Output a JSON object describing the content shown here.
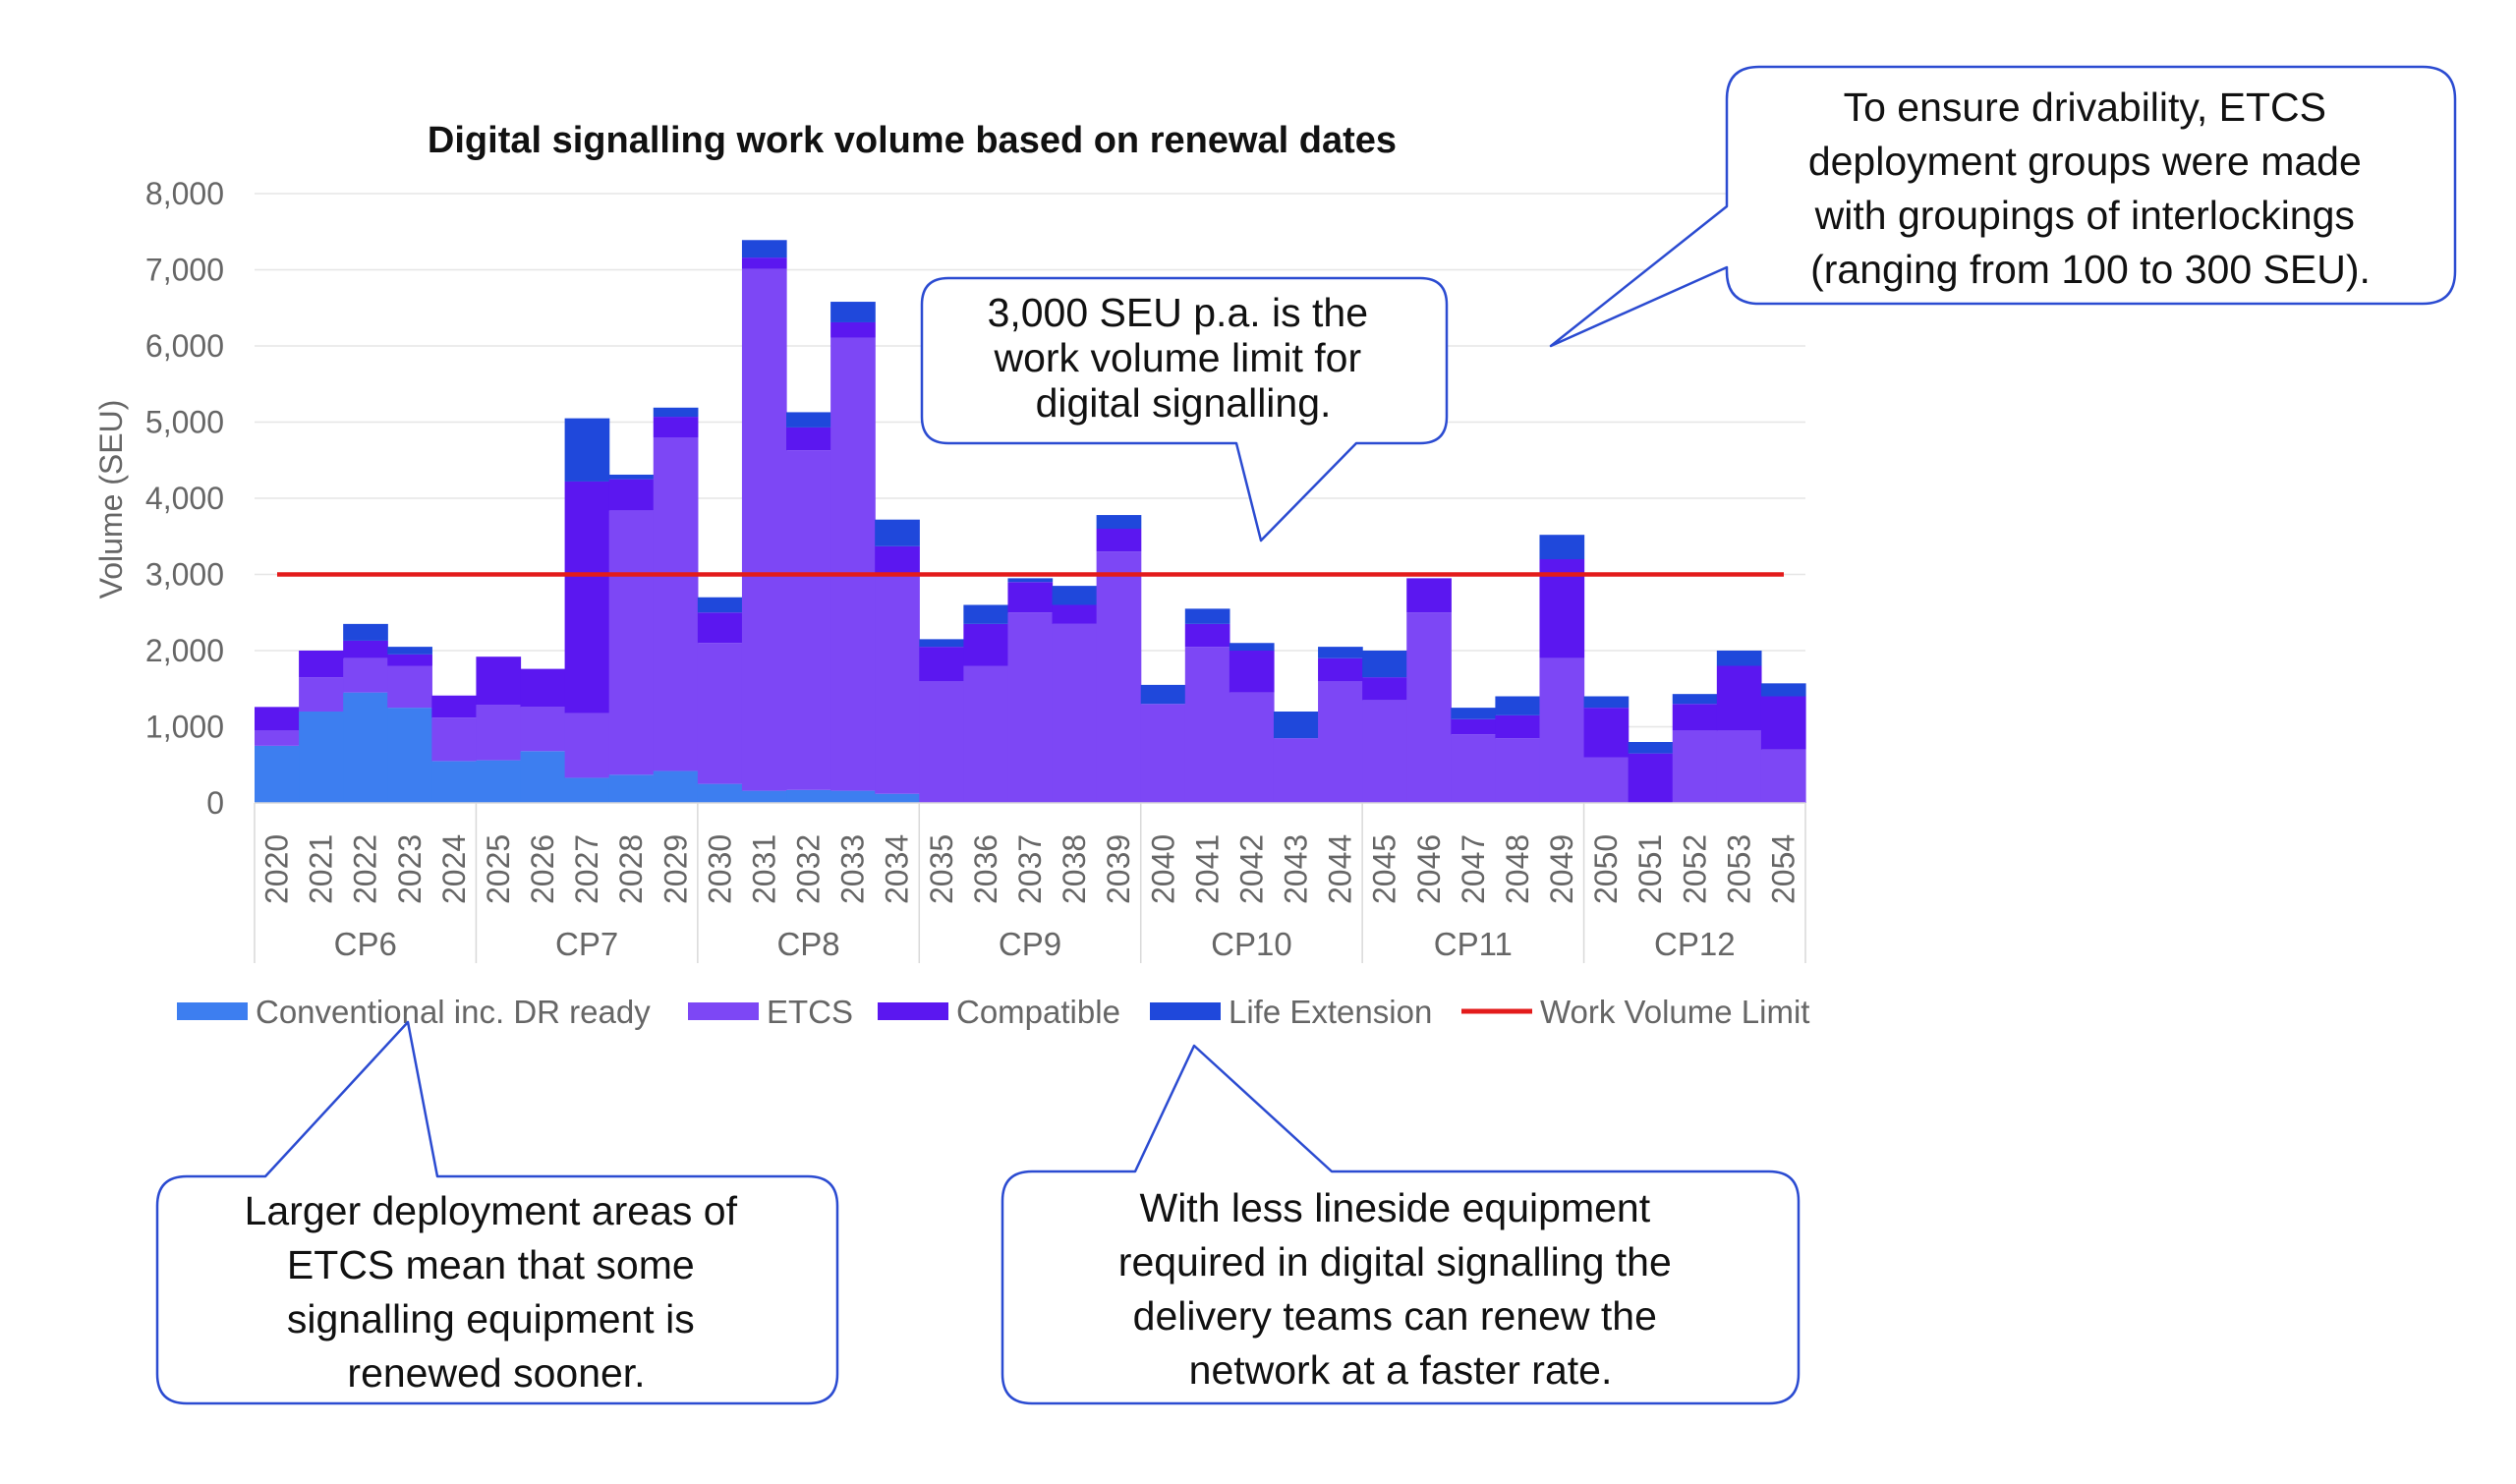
{
  "chart_data": {
    "type": "bar",
    "stacked": true,
    "title": "Digital signalling work volume based on renewal dates",
    "ylabel": "Volume (SEU)",
    "xlabel": "",
    "ylim": [
      0,
      8000
    ],
    "yticks": [
      0,
      1000,
      2000,
      3000,
      4000,
      5000,
      6000,
      7000,
      8000
    ],
    "ytick_labels": [
      "0",
      "1,000",
      "2,000",
      "3,000",
      "4,000",
      "5,000",
      "6,000",
      "7,000",
      "8,000"
    ],
    "grid": true,
    "legend_position": "bottom",
    "categories": [
      "2020",
      "2021",
      "2022",
      "2023",
      "2024",
      "2025",
      "2026",
      "2027",
      "2028",
      "2029",
      "2030",
      "2031",
      "2032",
      "2033",
      "2034",
      "2035",
      "2036",
      "2037",
      "2038",
      "2039",
      "2040",
      "2041",
      "2042",
      "2043",
      "2044",
      "2045",
      "2046",
      "2047",
      "2048",
      "2049",
      "2050",
      "2051",
      "2052",
      "2053",
      "2054"
    ],
    "groups": [
      {
        "label": "CP6",
        "years": 5
      },
      {
        "label": "CP7",
        "years": 5
      },
      {
        "label": "CP8",
        "years": 5
      },
      {
        "label": "CP9",
        "years": 5
      },
      {
        "label": "CP10",
        "years": 5
      },
      {
        "label": "CP11",
        "years": 5
      },
      {
        "label": "CP12",
        "years": 5
      }
    ],
    "series": [
      {
        "name": "Conventional inc. DR ready",
        "color": "#3d7ef0",
        "values": [
          750,
          1200,
          1450,
          1250,
          550,
          560,
          680,
          330,
          370,
          420,
          250,
          160,
          170,
          160,
          120,
          0,
          0,
          0,
          0,
          0,
          0,
          0,
          0,
          0,
          0,
          0,
          0,
          0,
          0,
          0,
          0,
          0,
          0,
          0,
          0
        ]
      },
      {
        "name": "ETCS",
        "color": "#7d47f5",
        "values": [
          200,
          450,
          450,
          550,
          570,
          730,
          580,
          850,
          3470,
          4380,
          1850,
          6850,
          4460,
          5950,
          2900,
          1600,
          1800,
          2500,
          2350,
          3300,
          1300,
          2050,
          1450,
          850,
          1600,
          1350,
          2500,
          900,
          850,
          1900,
          600,
          0,
          950,
          950,
          700
        ]
      },
      {
        "name": "Compatible",
        "color": "#5b17f0",
        "values": [
          310,
          350,
          230,
          150,
          290,
          630,
          500,
          3040,
          410,
          270,
          400,
          150,
          300,
          200,
          350,
          450,
          550,
          400,
          250,
          300,
          0,
          300,
          550,
          0,
          300,
          300,
          450,
          200,
          300,
          1300,
          650,
          650,
          350,
          850,
          700
        ]
      },
      {
        "name": "Life Extension",
        "color": "#1f48db",
        "values": [
          0,
          0,
          220,
          100,
          0,
          0,
          0,
          830,
          60,
          120,
          200,
          230,
          200,
          270,
          350,
          100,
          250,
          50,
          250,
          180,
          250,
          200,
          100,
          350,
          150,
          350,
          0,
          150,
          250,
          320,
          150,
          150,
          130,
          200,
          170
        ]
      }
    ],
    "reference_line": {
      "name": "Work Volume Limit",
      "value": 3000,
      "color": "#e31b1b"
    }
  },
  "legend": [
    {
      "label": "Conventional inc. DR ready",
      "color": "#3d7ef0"
    },
    {
      "label": "ETCS",
      "color": "#7d47f5"
    },
    {
      "label": "Compatible",
      "color": "#5b17f0"
    },
    {
      "label": "Life Extension",
      "color": "#1f48db"
    },
    {
      "label": "Work Volume Limit",
      "color": "#e31b1b"
    }
  ],
  "callouts": {
    "top_right": [
      "To ensure drivability, ETCS",
      "deployment groups were made",
      "with groupings of interlockings",
      "(ranging from 100 to 300 SEU)."
    ],
    "middle": [
      "3,000 SEU p.a. is the",
      "work volume limit for",
      "digital signalling."
    ],
    "bottom_left": [
      "Larger deployment areas of",
      "ETCS mean that some",
      "signalling equipment is",
      "renewed sooner."
    ],
    "bottom_right": [
      "With less lineside equipment",
      "required in digital signalling the",
      "delivery teams can renew the",
      "network at a faster rate."
    ]
  }
}
